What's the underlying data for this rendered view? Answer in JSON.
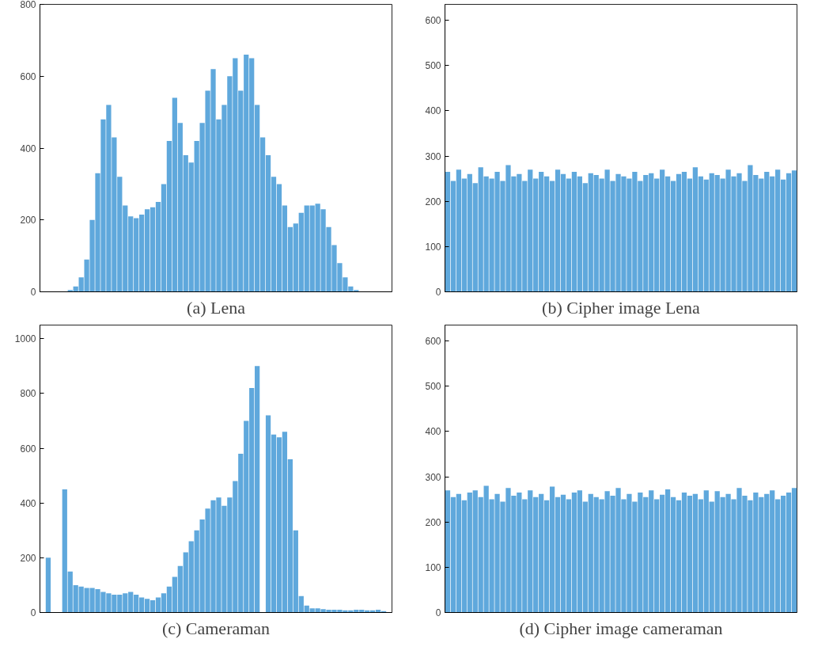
{
  "chart_data": [
    {
      "type": "bar",
      "title": "(a) Lena",
      "color": "#5fa8dc",
      "grid": false,
      "tick_labels": "y",
      "ylim": [
        0,
        800
      ],
      "yticks": [
        0,
        200,
        400,
        600,
        800
      ],
      "categories": [
        null,
        null,
        null,
        null,
        null,
        null,
        null,
        null,
        null,
        null,
        null,
        null,
        null,
        null,
        null,
        null,
        null,
        null,
        null,
        null,
        null,
        null,
        null,
        null,
        null,
        null,
        null,
        null,
        null,
        null,
        null,
        null,
        null,
        null,
        null,
        null,
        null,
        null,
        null,
        null,
        null,
        null,
        null,
        null,
        null,
        null,
        null,
        null,
        null,
        null,
        null,
        null,
        null,
        null,
        null,
        null,
        null,
        null,
        null,
        null,
        null,
        null,
        null,
        null
      ],
      "values": [
        0,
        0,
        0,
        0,
        0,
        5,
        15,
        40,
        90,
        200,
        330,
        480,
        520,
        430,
        320,
        240,
        210,
        205,
        215,
        230,
        235,
        250,
        300,
        420,
        540,
        470,
        380,
        360,
        420,
        470,
        560,
        620,
        480,
        520,
        600,
        650,
        560,
        660,
        650,
        520,
        430,
        380,
        320,
        300,
        240,
        180,
        190,
        220,
        240,
        240,
        245,
        230,
        180,
        130,
        80,
        40,
        15,
        5,
        0,
        0,
        0,
        0,
        0,
        0
      ]
    },
    {
      "type": "bar",
      "title": "(b) Cipher image Lena",
      "color": "#5fa8dc",
      "grid": false,
      "tick_labels": "y",
      "ylim": [
        0,
        635
      ],
      "yticks": [
        0,
        100,
        200,
        300,
        400,
        500,
        600
      ],
      "categories": [
        null,
        null,
        null,
        null,
        null,
        null,
        null,
        null,
        null,
        null,
        null,
        null,
        null,
        null,
        null,
        null,
        null,
        null,
        null,
        null,
        null,
        null,
        null,
        null,
        null,
        null,
        null,
        null,
        null,
        null,
        null,
        null,
        null,
        null,
        null,
        null,
        null,
        null,
        null,
        null,
        null,
        null,
        null,
        null,
        null,
        null,
        null,
        null,
        null,
        null,
        null,
        null,
        null,
        null,
        null,
        null,
        null,
        null,
        null,
        null,
        null,
        null,
        null,
        null
      ],
      "values": [
        265,
        245,
        270,
        250,
        260,
        240,
        275,
        255,
        250,
        265,
        245,
        280,
        255,
        260,
        245,
        270,
        250,
        265,
        255,
        245,
        270,
        260,
        250,
        265,
        255,
        240,
        262,
        258,
        250,
        270,
        245,
        260,
        255,
        250,
        265,
        245,
        258,
        262,
        250,
        270,
        255,
        245,
        260,
        265,
        250,
        275,
        255,
        248,
        262,
        258,
        250,
        270,
        255,
        262,
        245,
        280,
        258,
        250,
        265,
        255,
        270,
        248,
        262,
        268
      ]
    },
    {
      "type": "bar",
      "title": "(c) Cameraman",
      "color": "#5fa8dc",
      "grid": false,
      "tick_labels": "y",
      "ylim": [
        0,
        1050
      ],
      "yticks": [
        0,
        200,
        400,
        600,
        800,
        1000
      ],
      "categories": [
        null,
        null,
        null,
        null,
        null,
        null,
        null,
        null,
        null,
        null,
        null,
        null,
        null,
        null,
        null,
        null,
        null,
        null,
        null,
        null,
        null,
        null,
        null,
        null,
        null,
        null,
        null,
        null,
        null,
        null,
        null,
        null,
        null,
        null,
        null,
        null,
        null,
        null,
        null,
        null,
        null,
        null,
        null,
        null,
        null,
        null,
        null,
        null,
        null,
        null,
        null,
        null,
        null,
        null,
        null,
        null,
        null,
        null,
        null,
        null,
        null,
        null,
        null,
        null
      ],
      "values": [
        0,
        200,
        null,
        null,
        450,
        150,
        100,
        95,
        90,
        90,
        85,
        75,
        70,
        65,
        65,
        70,
        75,
        65,
        55,
        50,
        45,
        55,
        70,
        95,
        130,
        170,
        220,
        260,
        300,
        340,
        380,
        410,
        420,
        390,
        420,
        480,
        580,
        700,
        820,
        900,
        null,
        720,
        650,
        640,
        660,
        560,
        300,
        60,
        25,
        15,
        15,
        12,
        10,
        10,
        10,
        8,
        8,
        10,
        10,
        8,
        8,
        10,
        5,
        0
      ]
    },
    {
      "type": "bar",
      "title": "(d) Cipher image cameraman",
      "color": "#5fa8dc",
      "grid": false,
      "tick_labels": "y",
      "ylim": [
        0,
        635
      ],
      "yticks": [
        0,
        100,
        200,
        300,
        400,
        500,
        600
      ],
      "categories": [
        null,
        null,
        null,
        null,
        null,
        null,
        null,
        null,
        null,
        null,
        null,
        null,
        null,
        null,
        null,
        null,
        null,
        null,
        null,
        null,
        null,
        null,
        null,
        null,
        null,
        null,
        null,
        null,
        null,
        null,
        null,
        null,
        null,
        null,
        null,
        null,
        null,
        null,
        null,
        null,
        null,
        null,
        null,
        null,
        null,
        null,
        null,
        null,
        null,
        null,
        null,
        null,
        null,
        null,
        null,
        null,
        null,
        null,
        null,
        null,
        null,
        null,
        null,
        null
      ],
      "values": [
        270,
        255,
        262,
        248,
        265,
        270,
        255,
        280,
        250,
        262,
        245,
        275,
        258,
        265,
        250,
        270,
        255,
        262,
        248,
        278,
        255,
        260,
        250,
        265,
        270,
        245,
        262,
        255,
        250,
        268,
        258,
        275,
        250,
        262,
        245,
        265,
        255,
        270,
        250,
        260,
        272,
        255,
        248,
        265,
        258,
        262,
        250,
        270,
        245,
        268,
        255,
        262,
        250,
        275,
        258,
        248,
        265,
        255,
        262,
        270,
        250,
        258,
        265,
        275
      ]
    }
  ]
}
